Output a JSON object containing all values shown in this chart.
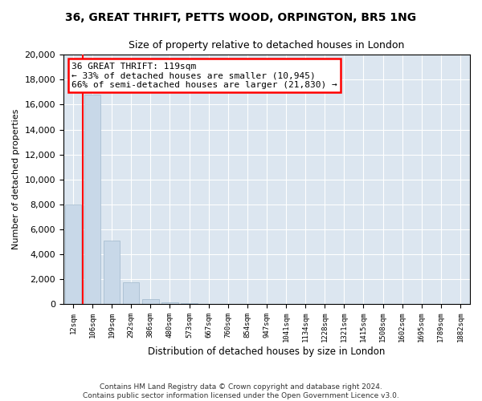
{
  "title_line1": "36, GREAT THRIFT, PETTS WOOD, ORPINGTON, BR5 1NG",
  "title_line2": "Size of property relative to detached houses in London",
  "xlabel": "Distribution of detached houses by size in London",
  "ylabel": "Number of detached properties",
  "footer_line1": "Contains HM Land Registry data © Crown copyright and database right 2024.",
  "footer_line2": "Contains public sector information licensed under the Open Government Licence v3.0.",
  "annotation_title": "36 GREAT THRIFT: 119sqm",
  "annotation_line1": "← 33% of detached houses are smaller (10,945)",
  "annotation_line2": "66% of semi-detached houses are larger (21,830) →",
  "bar_color": "#c8d8e8",
  "bar_edge_color": "#a0b8cc",
  "property_line_color": "red",
  "annotation_edge_color": "red",
  "categories": [
    "12sqm",
    "106sqm",
    "199sqm",
    "292sqm",
    "386sqm",
    "480sqm",
    "573sqm",
    "667sqm",
    "760sqm",
    "854sqm",
    "947sqm",
    "1041sqm",
    "1134sqm",
    "1228sqm",
    "1321sqm",
    "1415sqm",
    "1508sqm",
    "1602sqm",
    "1695sqm",
    "1789sqm",
    "1882sqm"
  ],
  "values": [
    8000,
    16800,
    5100,
    1750,
    380,
    120,
    40,
    15,
    8,
    4,
    2,
    2,
    1,
    1,
    1,
    1,
    1,
    1,
    1,
    1,
    1
  ],
  "ylim": [
    0,
    20000
  ],
  "yticks": [
    0,
    2000,
    4000,
    6000,
    8000,
    10000,
    12000,
    14000,
    16000,
    18000,
    20000
  ],
  "property_bar_index": 1,
  "figsize": [
    6.0,
    5.0
  ],
  "dpi": 100,
  "plot_bg_color": "#dce6f0",
  "fig_bg_color": "#ffffff"
}
